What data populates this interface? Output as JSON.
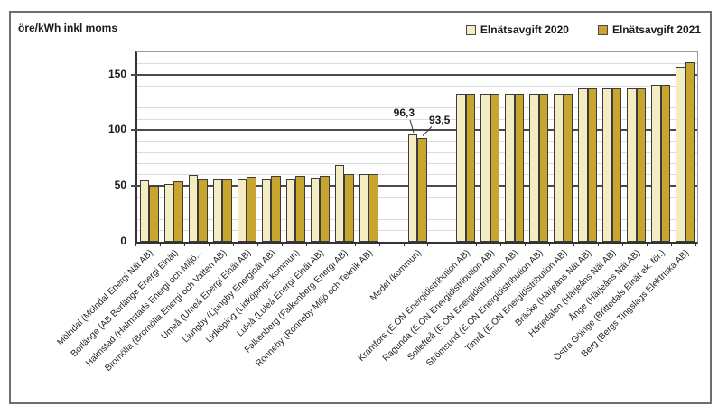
{
  "chart": {
    "y_axis_label": "öre/kWh inkl moms",
    "y_tick_labels": [
      "0",
      "50",
      "100",
      "150"
    ],
    "colors": {
      "series_2020": "#F4EDC4",
      "series_2021": "#C7A52F",
      "bar_border": "#3c3c3c",
      "major_grid": "#4a4a4a",
      "minor_grid": "#dcdcdc",
      "frame_border": "#6e6e6e"
    }
  },
  "chart_data": {
    "type": "bar",
    "title": "",
    "xlabel": "",
    "ylabel": "öre/kWh inkl moms",
    "ylim": [
      0,
      170
    ],
    "major_grid_step": 50,
    "minor_grid_step": 10,
    "grid": true,
    "legend_position": "top-right",
    "categories": [
      "Mölndal (Mölndal Energi Nät AB)",
      "Borlänge (AB Borlänge Energi Elnät)",
      "Halmstad (Halmstads Energi och Miljö...",
      "Bromölla (Bromölla Energi och Vatten AB)",
      "Umeå (Umeå Energi Elnät AB)",
      "Ljungby (Ljungby Energinät AB)",
      "Lidköping (Lidköpings kommun)",
      "Luleå (Luleå Energi Elnät AB)",
      "Falkenberg (Falkenberg Energi AB)",
      "Ronneby (Ronneby Miljö och Teknik AB)",
      "Medel (kommun)",
      "Kramfors (E.ON Energidistribution AB)",
      "Ragunda (E.ON Energidistribution AB)",
      "Sollefteå (E.ON Energidistribution AB)",
      "Strömsund (E.ON Energidistribution AB)",
      "Timrå (E.ON Energidistribution AB)",
      "Bräcke (Härjeåns Nät AB)",
      "Härjedalen (Härjeåns Nät AB)",
      "Ånge (Härjeåns Nät AB)",
      "Östra Göinge (Brittedals Elnät ek. för.)",
      "Berg (Bergs Tingslags Elektriska AB)"
    ],
    "series": [
      {
        "name": "Elnätsavgift 2020",
        "color": "#F4EDC4",
        "values": [
          55,
          51.5,
          60,
          57,
          57,
          57,
          57,
          57.5,
          69,
          61,
          96.3,
          132.5,
          132.5,
          132.5,
          132.5,
          132.5,
          138,
          138,
          138,
          141,
          157
        ]
      },
      {
        "name": "Elnätsavgift 2021",
        "color": "#C7A52F",
        "values": [
          50,
          54,
          57,
          56.5,
          58.5,
          59,
          59,
          59.5,
          60.5,
          61,
          93.5,
          132.5,
          132.5,
          132.5,
          132.5,
          132.5,
          138,
          138,
          138,
          141,
          161
        ]
      }
    ],
    "spacer_before": [
      "Medel (kommun)",
      "Kramfors (E.ON Energidistribution AB)"
    ],
    "annotations": [
      {
        "text": "96,3",
        "category": "Medel (kommun)",
        "series": 0,
        "value": 96.3
      },
      {
        "text": "93,5",
        "category": "Medel (kommun)",
        "series": 1,
        "value": 93.5
      }
    ]
  }
}
